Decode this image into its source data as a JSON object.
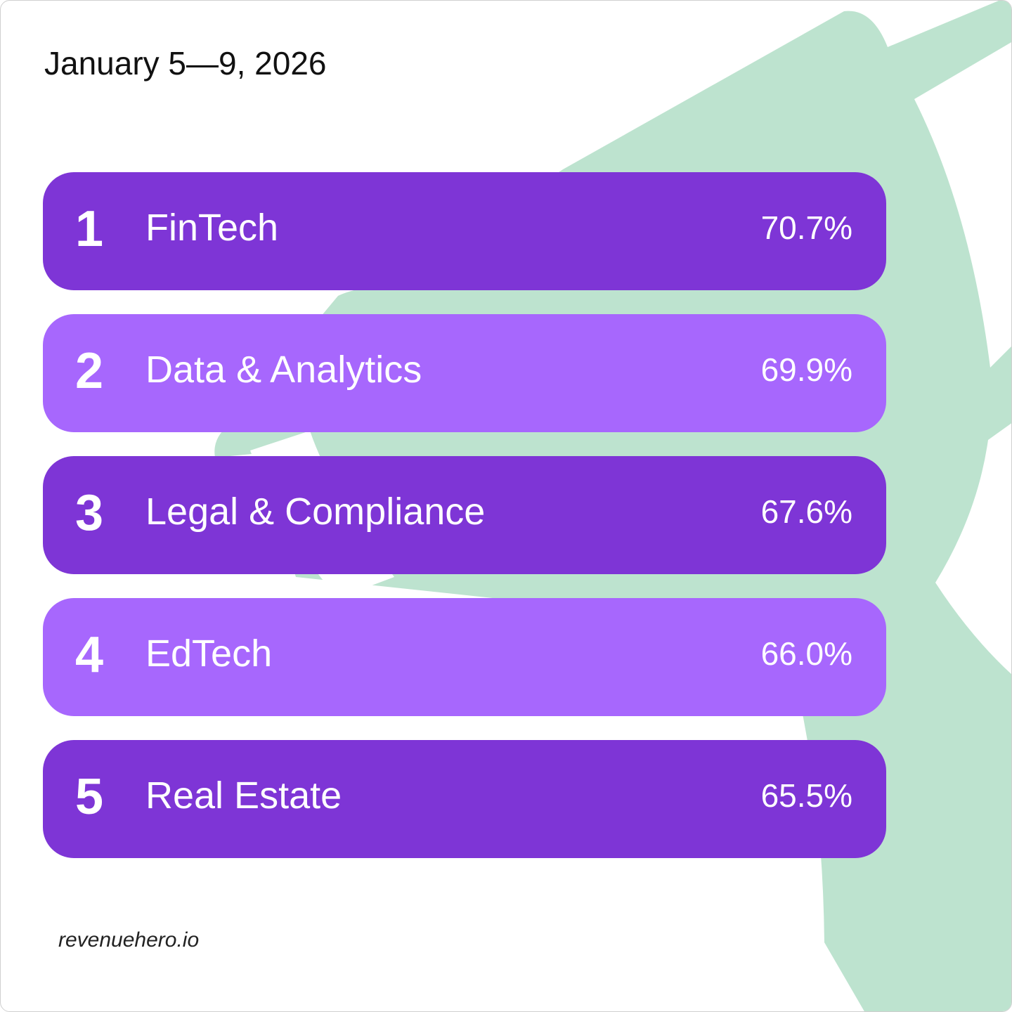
{
  "header": {
    "date_range": "January 5—9, 2026"
  },
  "colors": {
    "dark_row": "#7e35d6",
    "light_row": "#a767fd",
    "background_shape": "#bde3cf"
  },
  "rankings": [
    {
      "rank": "1",
      "label": "FinTech",
      "value": "70.7%"
    },
    {
      "rank": "2",
      "label": "Data & Analytics",
      "value": "69.9%"
    },
    {
      "rank": "3",
      "label": "Legal & Compliance",
      "value": "67.6%"
    },
    {
      "rank": "4",
      "label": "EdTech",
      "value": "66.0%"
    },
    {
      "rank": "5",
      "label": "Real Estate",
      "value": "65.5%"
    }
  ],
  "footer": {
    "brand": "revenuehero.io"
  }
}
